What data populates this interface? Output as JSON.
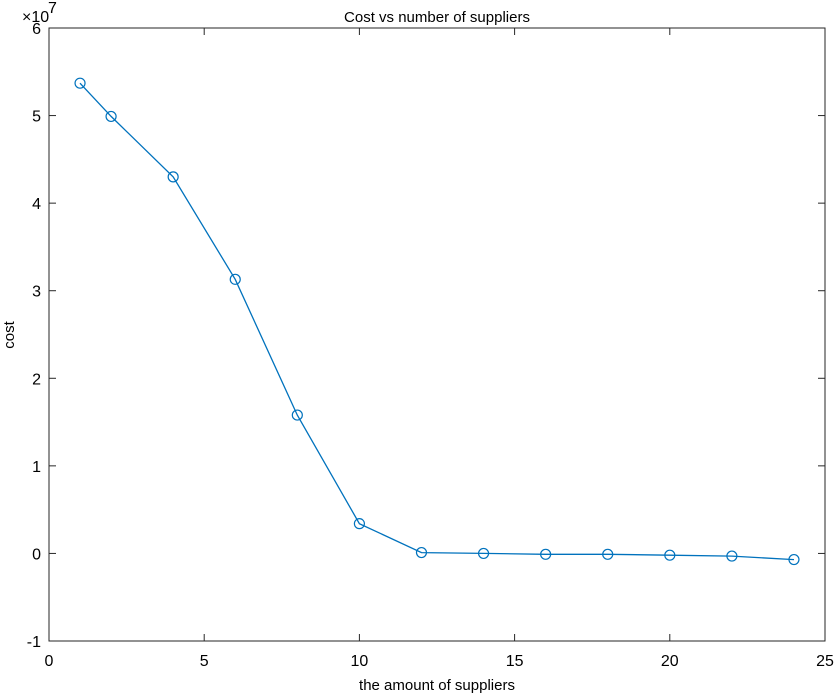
{
  "chart_data": {
    "type": "line",
    "title": "Cost vs number of suppliers",
    "xlabel": "the amount of suppliers",
    "ylabel": "cost",
    "y_scale_multiplier": "×10",
    "y_scale_exponent": "7",
    "xlim": [
      0,
      25
    ],
    "ylim": [
      -1,
      6
    ],
    "x_ticks": [
      "0",
      "5",
      "10",
      "15",
      "20",
      "25"
    ],
    "y_ticks": [
      "-1",
      "0",
      "1",
      "2",
      "3",
      "4",
      "5",
      "6"
    ],
    "grid": false,
    "legend": "none",
    "marker": "circle",
    "line_color": "#0072BD",
    "series": [
      {
        "x": [
          1,
          2,
          4,
          6,
          8,
          10,
          12,
          14,
          16,
          18,
          20,
          22,
          24
        ],
        "values": [
          5.37,
          4.99,
          4.3,
          3.13,
          1.58,
          0.34,
          0.01,
          0.0,
          -0.01,
          -0.01,
          -0.02,
          -0.03,
          -0.07
        ]
      }
    ]
  }
}
